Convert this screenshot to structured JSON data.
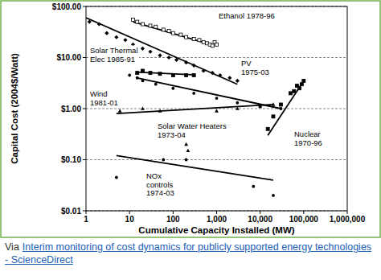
{
  "chart_data": {
    "type": "scatter",
    "xlabel": "Cumulative Capacity Installed (MW)",
    "ylabel": "Capital Cost (2004$/Watt)",
    "log": true,
    "grid": "y",
    "xlim": [
      1,
      1000000
    ],
    "ylim": [
      0.01,
      100
    ],
    "xticks": [
      1,
      10,
      100,
      {
        "value": 1000,
        "label": "1,000"
      },
      {
        "value": 10000,
        "label": "10,000"
      },
      {
        "value": 100000,
        "label": "100,000"
      },
      {
        "value": 1000000,
        "label": "1,000,000"
      }
    ],
    "yticks": [
      {
        "value": 0.01,
        "label": "$0.01"
      },
      {
        "value": 0.1,
        "label": "$0.10"
      },
      {
        "value": 1,
        "label": "$1.00"
      },
      {
        "value": 10,
        "label": "$10.00"
      },
      {
        "value": 100,
        "label": "$100.00"
      }
    ],
    "series": [
      {
        "name": "Ethanol 1978-96",
        "color": "#000000",
        "marker": "square-open",
        "x": [
          12,
          15,
          20,
          30,
          40,
          60,
          80,
          100,
          150,
          200,
          300,
          400,
          500,
          600,
          700,
          800,
          900,
          1000
        ],
        "values": [
          55,
          50,
          45,
          42,
          40,
          35,
          33,
          30,
          28,
          25,
          23,
          22,
          20,
          19,
          18,
          17,
          20,
          18
        ],
        "trend": {
          "x": [
            12,
            740
          ],
          "values": [
            50,
            18
          ]
        }
      },
      {
        "name": "Solar Thermal Elec 1985-91",
        "color": "#000000",
        "marker": "square",
        "x": [
          15,
          20,
          30,
          50,
          100,
          200,
          300
        ],
        "values": [
          5,
          5.5,
          5,
          4.8,
          4.5,
          4.5,
          4.5
        ],
        "trend": {
          "x": [
            14,
            280
          ],
          "values": [
            5.2,
            4.6
          ]
        }
      },
      {
        "name": "PV 1975-03",
        "color": "#000000",
        "marker": "diamond",
        "x": [
          1.2,
          2,
          3,
          5,
          8,
          12,
          20,
          30,
          50,
          80,
          120,
          200,
          300,
          500,
          800,
          1200,
          2000,
          3000
        ],
        "values": [
          50,
          45,
          30,
          25,
          22,
          18,
          15,
          13,
          11,
          10,
          9,
          8,
          7,
          5.5,
          5,
          4.5,
          4,
          3.5
        ],
        "trend": {
          "x": [
            1,
            3000
          ],
          "values": [
            60,
            3
          ]
        }
      },
      {
        "name": "Wind 1981-01",
        "color": "#000000",
        "marker": "circle",
        "x": [
          10,
          15,
          20,
          40,
          100,
          300,
          1000,
          3000,
          10000,
          30000
        ],
        "values": [
          4.5,
          4,
          3.5,
          3,
          2.5,
          2,
          1.6,
          1.3,
          1.1,
          1
        ],
        "trend": {
          "x": [
            15,
            30000
          ],
          "values": [
            4,
            1
          ]
        }
      },
      {
        "name": "Solar Water Heaters 1973-04",
        "color": "#000000",
        "marker": "triangle",
        "x": [
          6,
          20,
          50,
          200,
          220,
          300,
          1000,
          3000,
          10000,
          20000
        ],
        "values": [
          0.9,
          1,
          0.9,
          0.2,
          0.15,
          0.5,
          0.9,
          1,
          1.1,
          1.2
        ],
        "trend": {
          "x": [
            5,
            20000
          ],
          "values": [
            0.8,
            1.2
          ]
        }
      },
      {
        "name": "Nuclear 1970-96",
        "color": "#000000",
        "marker": "square",
        "x": [
          15000,
          20000,
          30000,
          50000,
          60000,
          70000,
          80000,
          90000,
          100000
        ],
        "values": [
          0.4,
          0.7,
          1.2,
          2,
          2.2,
          2.8,
          2.5,
          3,
          3.5
        ],
        "trend": {
          "x": [
            15000,
            100000
          ],
          "values": [
            0.3,
            3.5
          ]
        }
      },
      {
        "name": "NOx controls 1974-03",
        "color": "#000000",
        "marker": "circle",
        "x": [
          5,
          60,
          200,
          7000,
          20000
        ],
        "values": [
          0.045,
          0.1,
          0.1,
          0.03,
          0.02
        ],
        "trend": {
          "x": [
            5,
            20000
          ],
          "values": [
            0.12,
            0.04
          ]
        }
      }
    ]
  },
  "source": {
    "prefix": "Via",
    "link": "Interim monitoring of cost dynamics for publicly supported energy technologies - ScienceDirect"
  }
}
